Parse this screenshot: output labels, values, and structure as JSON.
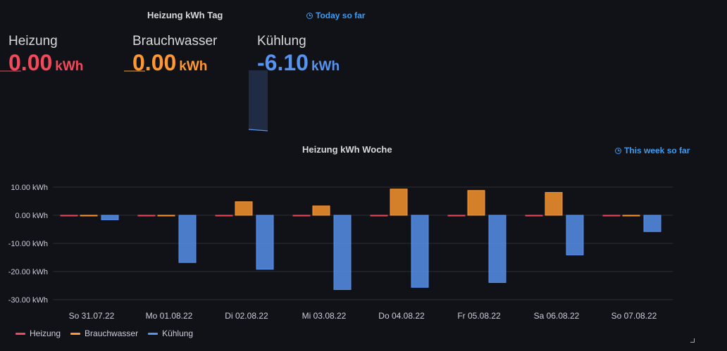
{
  "top_panel": {
    "title": "Heizung kWh Tag",
    "time_info": "Today so far",
    "stats": [
      {
        "name": "Heizung",
        "value": "0.00",
        "unit": "kWh",
        "color": "#f2495c"
      },
      {
        "name": "Brauchwasser",
        "value": "0.00",
        "unit": "kWh",
        "color": "#ff9830"
      },
      {
        "name": "Kühlung",
        "value": "-6.10",
        "unit": "kWh",
        "color": "#5794f2"
      }
    ]
  },
  "week_panel": {
    "title": "Heizung kWh Woche",
    "time_info": "This week so far"
  },
  "chart_data": {
    "type": "bar",
    "categories": [
      "So 31.07.22",
      "Mo 01.08.22",
      "Di 02.08.22",
      "Mi 03.08.22",
      "Do 04.08.22",
      "Fr 05.08.22",
      "Sa 06.08.22",
      "So 07.08.22"
    ],
    "series": [
      {
        "name": "Heizung",
        "color": "#f2495c",
        "values": [
          0,
          0,
          0,
          0,
          0,
          0,
          0,
          0
        ]
      },
      {
        "name": "Brauchwasser",
        "color": "#ff9830",
        "values": [
          0,
          0,
          4.8,
          3.3,
          9.3,
          8.8,
          8.1,
          0
        ]
      },
      {
        "name": "Kühlung",
        "color": "#5794f2",
        "values": [
          -1.6,
          -16.8,
          -19.2,
          -26.4,
          -25.6,
          -23.9,
          -14.1,
          -5.8
        ]
      }
    ],
    "yticks": [
      "10.00 kWh",
      "0.00 kWh",
      "-10.00 kWh",
      "-20.00 kWh",
      "-30.00 kWh"
    ],
    "ytick_values": [
      10,
      0,
      -10,
      -20,
      -30
    ],
    "ylim": [
      -30,
      10
    ],
    "grid": true,
    "legend_position": "bottom-left"
  }
}
